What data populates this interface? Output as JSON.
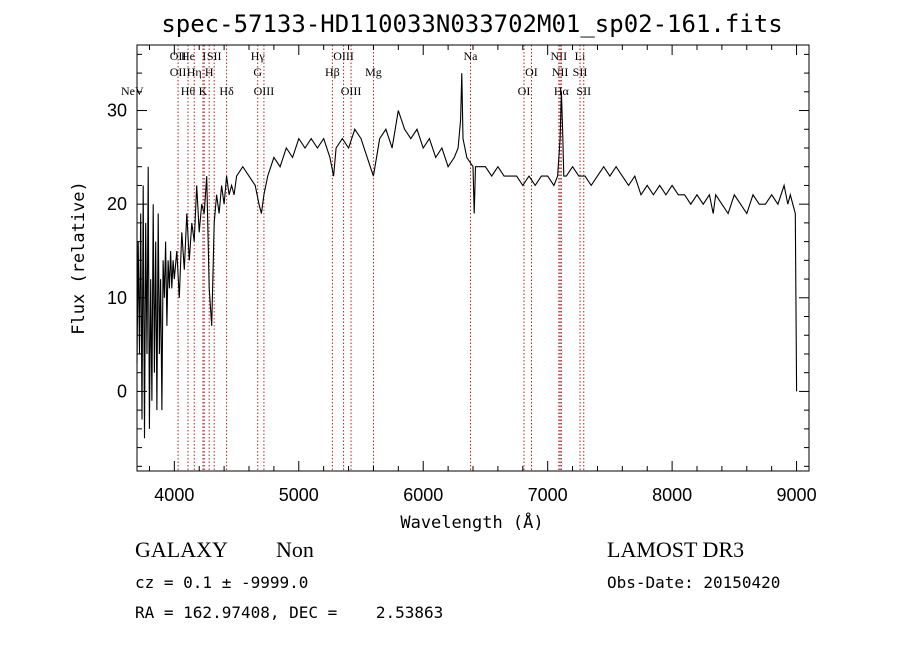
{
  "chart_data": {
    "type": "line",
    "title": "spec-57133-HD110033N033702M01_sp02-161.fits",
    "xlabel": "Wavelength (Å)",
    "ylabel": "Flux (relative)",
    "xlim": [
      3700,
      9100
    ],
    "ylim": [
      -8.5,
      37
    ],
    "xticks": [
      4000,
      5000,
      6000,
      7000,
      8000,
      9000
    ],
    "yticks": [
      0,
      10,
      20,
      30
    ],
    "series": [
      {
        "points": [
          [
            3700,
            3
          ],
          [
            3710,
            16
          ],
          [
            3720,
            4
          ],
          [
            3730,
            19
          ],
          [
            3740,
            -3
          ],
          [
            3750,
            22
          ],
          [
            3760,
            -5
          ],
          [
            3770,
            18
          ],
          [
            3780,
            4
          ],
          [
            3790,
            24
          ],
          [
            3800,
            -4
          ],
          [
            3810,
            12
          ],
          [
            3820,
            -1
          ],
          [
            3830,
            20
          ],
          [
            3840,
            2
          ],
          [
            3850,
            16
          ],
          [
            3860,
            -2
          ],
          [
            3870,
            19
          ],
          [
            3880,
            4
          ],
          [
            3890,
            12
          ],
          [
            3900,
            -2
          ],
          [
            3910,
            14
          ],
          [
            3920,
            10
          ],
          [
            3930,
            16
          ],
          [
            3940,
            7
          ],
          [
            3950,
            14
          ],
          [
            3960,
            11
          ],
          [
            3970,
            15
          ],
          [
            3980,
            11
          ],
          [
            3990,
            14
          ],
          [
            4000,
            12
          ],
          [
            4020,
            15
          ],
          [
            4040,
            10
          ],
          [
            4060,
            17
          ],
          [
            4080,
            13
          ],
          [
            4100,
            19
          ],
          [
            4120,
            14
          ],
          [
            4140,
            18
          ],
          [
            4160,
            16
          ],
          [
            4180,
            22
          ],
          [
            4200,
            17
          ],
          [
            4220,
            20
          ],
          [
            4240,
            19
          ],
          [
            4260,
            23
          ],
          [
            4280,
            11
          ],
          [
            4300,
            7
          ],
          [
            4320,
            18
          ],
          [
            4340,
            21
          ],
          [
            4360,
            19
          ],
          [
            4380,
            22
          ],
          [
            4400,
            20
          ],
          [
            4420,
            23
          ],
          [
            4440,
            21
          ],
          [
            4460,
            22
          ],
          [
            4480,
            21
          ],
          [
            4500,
            23
          ],
          [
            4550,
            24
          ],
          [
            4600,
            23
          ],
          [
            4650,
            22
          ],
          [
            4680,
            20
          ],
          [
            4700,
            19
          ],
          [
            4720,
            21
          ],
          [
            4750,
            23
          ],
          [
            4800,
            25
          ],
          [
            4850,
            24
          ],
          [
            4900,
            26
          ],
          [
            4950,
            25
          ],
          [
            5000,
            27
          ],
          [
            5050,
            26
          ],
          [
            5100,
            27
          ],
          [
            5150,
            26
          ],
          [
            5200,
            27
          ],
          [
            5250,
            25
          ],
          [
            5280,
            23
          ],
          [
            5300,
            26
          ],
          [
            5350,
            27
          ],
          [
            5400,
            26
          ],
          [
            5450,
            28
          ],
          [
            5500,
            27
          ],
          [
            5550,
            25
          ],
          [
            5600,
            23
          ],
          [
            5650,
            27
          ],
          [
            5700,
            28
          ],
          [
            5750,
            26
          ],
          [
            5800,
            30
          ],
          [
            5850,
            28
          ],
          [
            5900,
            27
          ],
          [
            5950,
            28
          ],
          [
            6000,
            26
          ],
          [
            6050,
            27
          ],
          [
            6100,
            25
          ],
          [
            6150,
            26
          ],
          [
            6200,
            24
          ],
          [
            6250,
            25
          ],
          [
            6280,
            26
          ],
          [
            6300,
            29
          ],
          [
            6310,
            34
          ],
          [
            6320,
            27
          ],
          [
            6350,
            25
          ],
          [
            6400,
            24
          ],
          [
            6410,
            19
          ],
          [
            6420,
            24
          ],
          [
            6450,
            24
          ],
          [
            6500,
            24
          ],
          [
            6550,
            23
          ],
          [
            6600,
            24
          ],
          [
            6650,
            23
          ],
          [
            6700,
            23
          ],
          [
            6750,
            23
          ],
          [
            6800,
            22
          ],
          [
            6850,
            23
          ],
          [
            6900,
            22
          ],
          [
            6950,
            23
          ],
          [
            7000,
            23
          ],
          [
            7050,
            22
          ],
          [
            7080,
            23
          ],
          [
            7100,
            27
          ],
          [
            7110,
            32
          ],
          [
            7120,
            28
          ],
          [
            7130,
            23
          ],
          [
            7150,
            23
          ],
          [
            7200,
            24
          ],
          [
            7250,
            23
          ],
          [
            7300,
            23
          ],
          [
            7350,
            22
          ],
          [
            7400,
            23
          ],
          [
            7450,
            24
          ],
          [
            7500,
            23
          ],
          [
            7550,
            24
          ],
          [
            7600,
            23
          ],
          [
            7650,
            22
          ],
          [
            7700,
            23
          ],
          [
            7750,
            21
          ],
          [
            7800,
            22
          ],
          [
            7850,
            21
          ],
          [
            7900,
            22
          ],
          [
            7950,
            21
          ],
          [
            8000,
            22
          ],
          [
            8050,
            21
          ],
          [
            8100,
            21
          ],
          [
            8150,
            20
          ],
          [
            8200,
            21
          ],
          [
            8250,
            20
          ],
          [
            8300,
            21
          ],
          [
            8330,
            19
          ],
          [
            8350,
            21
          ],
          [
            8400,
            20
          ],
          [
            8450,
            19
          ],
          [
            8500,
            21
          ],
          [
            8550,
            20
          ],
          [
            8600,
            19
          ],
          [
            8650,
            21
          ],
          [
            8700,
            20
          ],
          [
            8750,
            20
          ],
          [
            8800,
            21
          ],
          [
            8850,
            20
          ],
          [
            8900,
            22
          ],
          [
            8930,
            20
          ],
          [
            8950,
            21
          ],
          [
            8970,
            20
          ],
          [
            8990,
            19
          ],
          [
            9000,
            0
          ]
        ]
      }
    ],
    "lines": [
      {
        "label": "NeV",
        "wl": 3426,
        "row": 3
      },
      {
        "label": "OII",
        "wl": 4030,
        "row": 0
      },
      {
        "label": "OII",
        "wl": 4030,
        "row": 1
      },
      {
        "label": "Hθ",
        "wl": 4110,
        "row": 2
      },
      {
        "label": "He",
        "wl": 4110,
        "row": 0
      },
      {
        "label": "Hη",
        "wl": 4160,
        "row": 1
      },
      {
        "label": "I",
        "wl": 4240,
        "row": 0
      },
      {
        "label": "H",
        "wl": 4280,
        "row": 1
      },
      {
        "label": "K",
        "wl": 4230,
        "row": 2
      },
      {
        "label": "SII",
        "wl": 4320,
        "row": 0
      },
      {
        "label": "Hδ",
        "wl": 4420,
        "row": 2
      },
      {
        "label": "Hγ",
        "wl": 4670,
        "row": 0
      },
      {
        "label": "G",
        "wl": 4670,
        "row": 1
      },
      {
        "label": "OIII",
        "wl": 4720,
        "row": 2
      },
      {
        "label": "OIII",
        "wl": 5360,
        "row": 0
      },
      {
        "label": "Hβ",
        "wl": 5270,
        "row": 1
      },
      {
        "label": "OIII",
        "wl": 5420,
        "row": 2
      },
      {
        "label": "Mg",
        "wl": 5600,
        "row": 1
      },
      {
        "label": "Na",
        "wl": 6380,
        "row": 0
      },
      {
        "label": "OI",
        "wl": 6870,
        "row": 1
      },
      {
        "label": "OI",
        "wl": 6810,
        "row": 2
      },
      {
        "label": "NII",
        "wl": 7090,
        "row": 0
      },
      {
        "label": "NII",
        "wl": 7100,
        "row": 1
      },
      {
        "label": "Hα",
        "wl": 7110,
        "row": 2
      },
      {
        "label": "Li",
        "wl": 7260,
        "row": 0
      },
      {
        "label": "SII",
        "wl": 7260,
        "row": 1
      },
      {
        "label": "SII",
        "wl": 7290,
        "row": 2
      }
    ],
    "line_color": "#b22222"
  },
  "info": {
    "class_label": "GALAXY",
    "subclass_label": "Non",
    "cz_line": "cz = 0.1 ± -9999.0",
    "radec_line": "RA = 162.97408, DEC =    2.53863",
    "survey": "LAMOST DR3",
    "obs_date": "Obs-Date: 20150420"
  }
}
